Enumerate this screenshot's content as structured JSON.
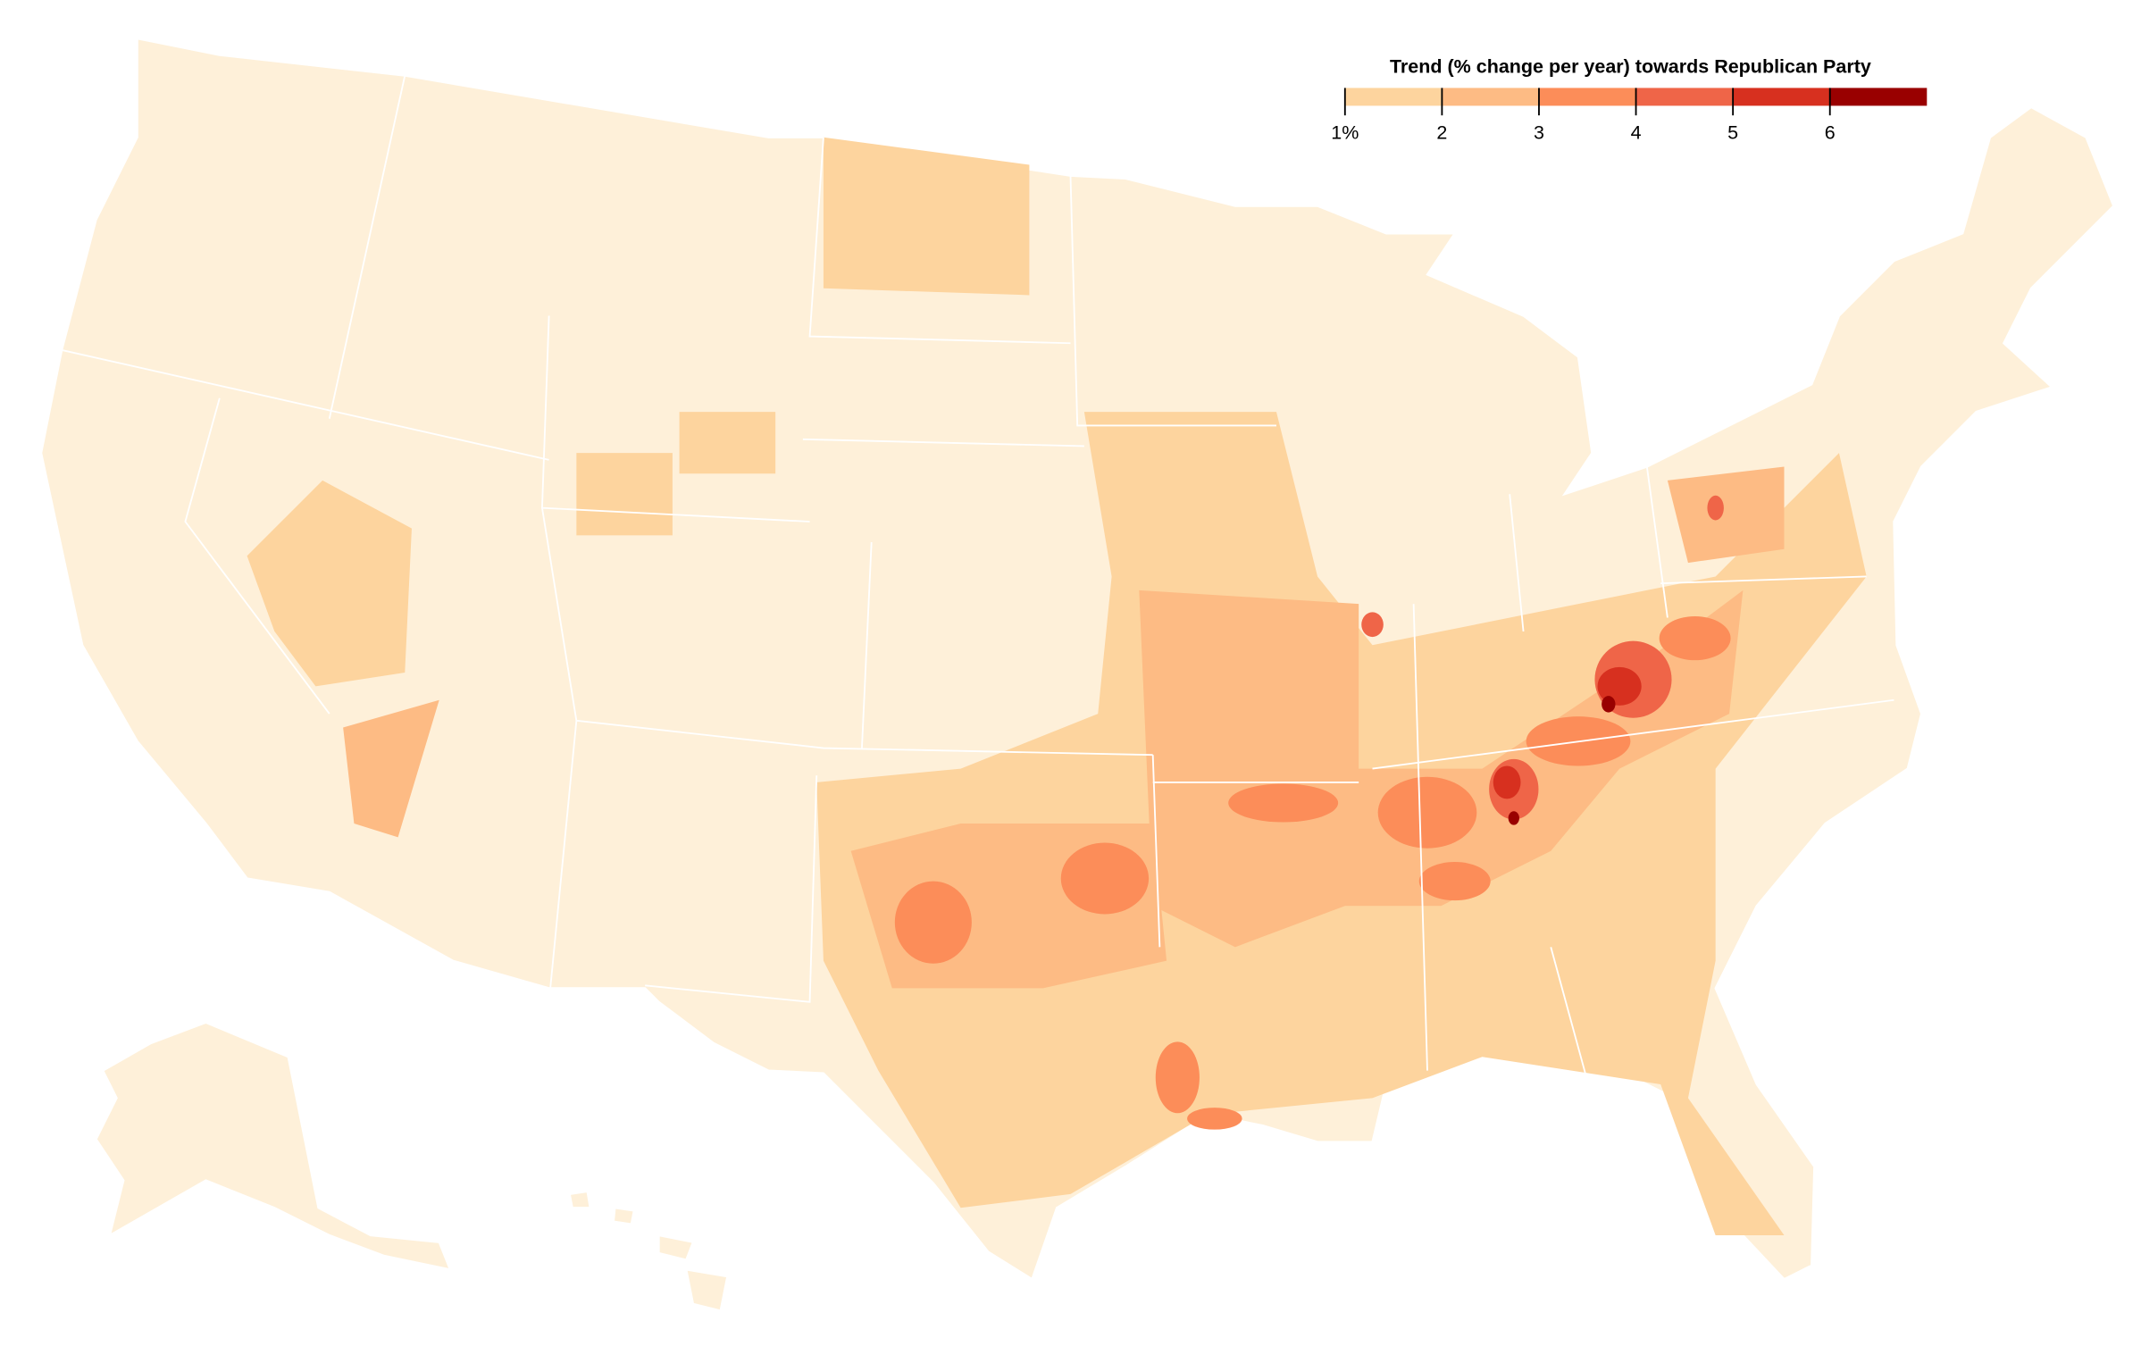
{
  "legend": {
    "title": "Trend (% change per year) towards Republican Party",
    "domain": [
      1,
      7
    ],
    "ticks": [
      {
        "value": 1,
        "label": "1%"
      },
      2,
      3,
      4,
      5,
      6
    ],
    "colors": [
      "#fdd49e",
      "#fdbb84",
      "#fc8d59",
      "#ef6548",
      "#d7301f",
      "#990000"
    ],
    "base_color": "#fef0d9"
  }
}
